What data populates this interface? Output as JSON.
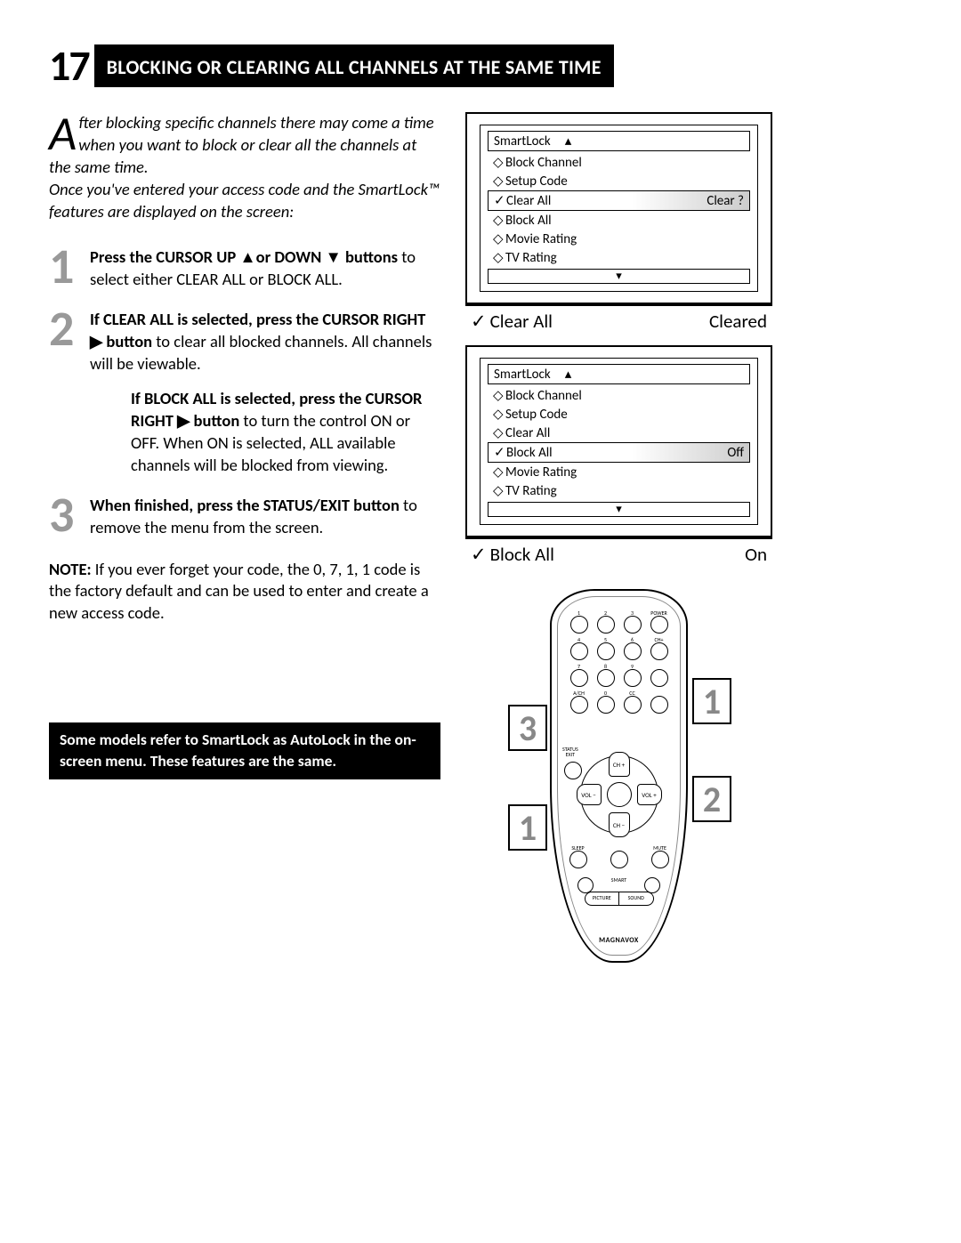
{
  "page_number": "17",
  "title": "BLOCKING OR CLEARING ALL CHANNELS AT THE SAME TIME",
  "intro": {
    "drop": "A",
    "line1": "fter blocking specific channels there",
    "line2": "may come a time when you want to block or clear all the channels at the same time.",
    "line3": "Once you've entered your access code and the SmartLock™ features are displayed on the screen:"
  },
  "steps": [
    {
      "num": "1",
      "bold": "Press the CURSOR UP ▲or DOWN ▼ buttons",
      "rest": " to select either CLEAR ALL or BLOCK ALL."
    },
    {
      "num": "2",
      "bold": "If CLEAR ALL is selected, press the CURSOR RIGHT ▶ button",
      "rest": " to clear all blocked channels. All channels will be viewable.",
      "sub_bold": "If BLOCK ALL is selected, press the CURSOR RIGHT ▶ button",
      "sub_rest": " to turn the control ON or OFF. When ON is selected, ALL available channels will be blocked from viewing."
    },
    {
      "num": "3",
      "bold": "When finished, press the STATUS/EXIT button",
      "rest": " to remove the menu from the screen."
    }
  ],
  "note": {
    "bold": "NOTE:",
    "rest": " If you ever forget your code, the 0, 7, 1, 1 code is the factory default and can be used to enter and create a new access code."
  },
  "black_note": "Some models refer to SmartLock as AutoLock in the on-screen menu. These features are the same.",
  "screen1": {
    "title": "SmartLock",
    "up": "▴",
    "items": [
      {
        "mk": "◇",
        "lbl": "Block Channel",
        "val": ""
      },
      {
        "mk": "◇",
        "lbl": "Setup Code",
        "val": ""
      },
      {
        "mk": "✓",
        "lbl": "Clear All",
        "val": "Clear ?",
        "sel": true
      },
      {
        "mk": "◇",
        "lbl": "Block All",
        "val": ""
      },
      {
        "mk": "◇",
        "lbl": "Movie Rating",
        "val": ""
      },
      {
        "mk": "◇",
        "lbl": "TV Rating",
        "val": ""
      }
    ],
    "down": "▾",
    "status_mk": "✓",
    "status_lbl": "Clear All",
    "status_val": "Cleared"
  },
  "screen2": {
    "title": "SmartLock",
    "up": "▴",
    "items": [
      {
        "mk": "◇",
        "lbl": "Block Channel",
        "val": ""
      },
      {
        "mk": "◇",
        "lbl": "Setup Code",
        "val": ""
      },
      {
        "mk": "◇",
        "lbl": "Clear All",
        "val": ""
      },
      {
        "mk": "✓",
        "lbl": "Block All",
        "val": "Off",
        "sel": true
      },
      {
        "mk": "◇",
        "lbl": "Movie Rating",
        "val": ""
      },
      {
        "mk": "◇",
        "lbl": "TV Rating",
        "val": ""
      }
    ],
    "down": "▾",
    "status_mk": "✓",
    "status_lbl": "Block All",
    "status_val": "On"
  },
  "remote": {
    "rows": [
      [
        "1",
        "2",
        "3",
        "POWER"
      ],
      [
        "4",
        "5",
        "6",
        "CH+"
      ],
      [
        "7",
        "8",
        "9",
        ""
      ],
      [
        "A/CH",
        "0",
        "CC",
        ""
      ]
    ],
    "dpad": {
      "up": "CH +",
      "down": "CH −",
      "left": "VOL −",
      "right": "VOL +"
    },
    "side_left": "STATUS\nEXIT",
    "side_right": "",
    "lower": [
      "SLEEP",
      "",
      "MUTE"
    ],
    "smart_row": [
      "S/P",
      "SMART",
      ""
    ],
    "bottom_row": [
      "PICTURE",
      "SOUND"
    ],
    "brand": "MAGNAVOX",
    "callouts": {
      "c1": "1",
      "c2": "2",
      "c3": "3",
      "c1b": "1"
    }
  }
}
